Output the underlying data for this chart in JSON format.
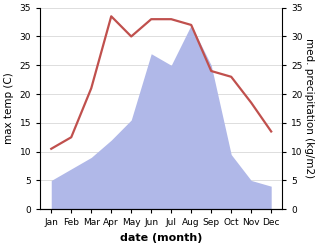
{
  "months": [
    "Jan",
    "Feb",
    "Mar",
    "Apr",
    "May",
    "Jun",
    "Jul",
    "Aug",
    "Sep",
    "Oct",
    "Nov",
    "Dec"
  ],
  "temperature": [
    10.5,
    12.5,
    21.0,
    33.5,
    30.0,
    33.0,
    33.0,
    32.0,
    24.0,
    23.0,
    18.5,
    13.5
  ],
  "precipitation": [
    5.0,
    7.0,
    9.0,
    12.0,
    15.5,
    27.0,
    25.0,
    32.0,
    25.0,
    9.5,
    5.0,
    4.0
  ],
  "temp_color": "#c0504d",
  "precip_fill_color": "#b0b8e8",
  "precip_fill_alpha": 1.0,
  "ylabel_left": "max temp (C)",
  "ylabel_right": "med. precipitation (kg/m2)",
  "xlabel": "date (month)",
  "ylim": [
    0,
    35
  ],
  "yticks": [
    0,
    5,
    10,
    15,
    20,
    25,
    30,
    35
  ],
  "bg_color": "#ffffff",
  "grid_color": "#d0d0d0",
  "label_fontsize": 7.5,
  "tick_fontsize": 6.5,
  "xlabel_fontsize": 8,
  "line_width": 1.6
}
